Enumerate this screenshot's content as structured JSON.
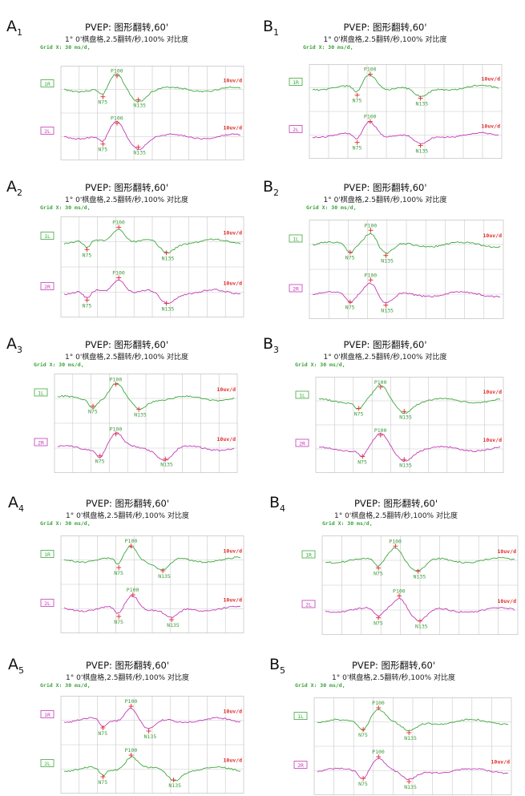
{
  "colors": {
    "green": "#3ea83e",
    "magenta": "#c23bb7",
    "red": "#e02b2b",
    "grid": "#c8c8c8"
  },
  "panels": [
    {
      "id": "A1",
      "letter": "A",
      "sub": "1",
      "title": "PVEP: 图形翻转,60'",
      "subtitle": "1° 0'棋盘格,2.5翻转/秒,100% 对比度",
      "grid_label": "Grid X: 30 ms/d,",
      "traces": [
        {
          "label": "1R",
          "color": "green",
          "scale": "10uv/d",
          "n75": "N75",
          "p100": "P100",
          "n135": "N135"
        },
        {
          "label": "2L",
          "color": "magenta",
          "scale": "10uv/d",
          "n75": "N75",
          "p100": "P100",
          "n135": "N135"
        }
      ]
    },
    {
      "id": "B1",
      "letter": "B",
      "sub": "1",
      "title": "PVEP: 图形翻转,60'",
      "subtitle": "1° 0'棋盘格,2.5翻转/秒,100% 对比度",
      "grid_label": "Grid X: 30 ms/d,",
      "traces": [
        {
          "label": "1R",
          "color": "green",
          "scale": "10uv/d",
          "n75": "N75",
          "p100": "P100",
          "n135": "N135"
        },
        {
          "label": "2L",
          "color": "magenta",
          "scale": "10uv/d",
          "n75": "N75",
          "p100": "P100",
          "n135": "N135"
        }
      ]
    },
    {
      "id": "A2",
      "letter": "A",
      "sub": "2",
      "title": "PVEP: 图形翻转,60'",
      "subtitle": "1° 0'棋盘格,2.5翻转/秒,100% 对比度",
      "grid_label": "Grid X: 30 ms/d,",
      "traces": [
        {
          "label": "1L",
          "color": "green",
          "scale": "10uv/d",
          "n75": "N75",
          "p100": "P100",
          "n135": "N135"
        },
        {
          "label": "2R",
          "color": "magenta",
          "scale": "10uv/d",
          "n75": "N75",
          "p100": "P100",
          "n135": "N135"
        }
      ]
    },
    {
      "id": "B2",
      "letter": "B",
      "sub": "2",
      "title": "PVEP: 图形翻转,60'",
      "subtitle": "1° 0'棋盘格,2.5翻转/秒,100% 对比度",
      "grid_label": "Grid X: 30 ms/d,",
      "traces": [
        {
          "label": "1L",
          "color": "green",
          "scale": "10uv/d",
          "n75": "N75",
          "p100": "P100",
          "n135": "N135"
        },
        {
          "label": "2R",
          "color": "magenta",
          "scale": "",
          "n75": "N75",
          "p100": "P100",
          "n135": "N135"
        }
      ]
    },
    {
      "id": "A3",
      "letter": "A",
      "sub": "3",
      "title": "PVEP: 图形翻转,60'",
      "subtitle": "1° 0'棋盘格,2.5翻转/秒,100% 对比度",
      "grid_label": "Grid X: 30 ms/d,",
      "traces": [
        {
          "label": "1L",
          "color": "green",
          "scale": "10uv/d",
          "n75": "N75",
          "p100": "P100",
          "n135": "N135"
        },
        {
          "label": "2R",
          "color": "magenta",
          "scale": "10uv/d",
          "n75": "N75",
          "p100": "P100",
          "n135": "N135"
        }
      ]
    },
    {
      "id": "B3",
      "letter": "B",
      "sub": "3",
      "title": "PVEP: 图形翻转,60'",
      "subtitle": "1° 0'棋盘格,2.5翻转/秒,100% 对比度",
      "grid_label": "Grid X: 30 ms/d,",
      "traces": [
        {
          "label": "1L",
          "color": "green",
          "scale": "10uv/d",
          "n75": "N75",
          "p100": "P100",
          "n135": "N135"
        },
        {
          "label": "2R",
          "color": "magenta",
          "scale": "10uv/d",
          "n75": "N75",
          "p100": "P100",
          "n135": "N135"
        }
      ]
    },
    {
      "id": "A4",
      "letter": "A",
      "sub": "4",
      "title": "PVEP: 图形翻转,60'",
      "subtitle": "1° 0'棋盘格,2.5翻转/秒,100% 对比度",
      "grid_label": "Grid X: 30 ms/d,",
      "traces": [
        {
          "label": "1R",
          "color": "green",
          "scale": "10uv/d",
          "n75": "N75",
          "p100": "P100",
          "n135": "N135"
        },
        {
          "label": "2L",
          "color": "magenta",
          "scale": "10uv/d",
          "n75": "N75",
          "p100": "P100",
          "n135": "N135"
        }
      ]
    },
    {
      "id": "B4",
      "letter": "B",
      "sub": "4",
      "title": "PVEP: 图形翻转,60'",
      "subtitle": "1° 0'棋盘格,2.5翻转/秒,100% 对比度",
      "grid_label": "Grid X: 30 ms/d,",
      "traces": [
        {
          "label": "1R",
          "color": "green",
          "scale": "10uv/d",
          "n75": "N75",
          "p100": "P100",
          "n135": "N135"
        },
        {
          "label": "2L",
          "color": "magenta",
          "scale": "10uv/d",
          "n75": "N75",
          "p100": "P100",
          "n135": "N135"
        }
      ]
    },
    {
      "id": "A5",
      "letter": "A",
      "sub": "5",
      "title": "PVEP: 图形翻转,60'",
      "subtitle": "1° 0'棋盘格,2.5翻转/秒,100% 对比度",
      "grid_label": "Grid X: 30 ms/d,",
      "traces": [
        {
          "label": "1R",
          "color": "magenta",
          "scale": "10uv/d",
          "n75": "N75",
          "p100": "P100",
          "n135": "N135"
        },
        {
          "label": "2L",
          "color": "green",
          "scale": "10uv/d",
          "n75": "N75",
          "p100": "P100",
          "n135": "N135"
        }
      ]
    },
    {
      "id": "B5",
      "letter": "B",
      "sub": "5",
      "title": "PVEP: 图形翻转,60'",
      "subtitle": "1° 0'棋盘格,2.5翻转/秒,100% 对比度",
      "grid_label": "Grid X: 30 ms/d,",
      "traces": [
        {
          "label": "1L",
          "color": "green",
          "scale": "",
          "n75": "N75",
          "p100": "P100",
          "n135": "N135"
        },
        {
          "label": "2R",
          "color": "magenta",
          "scale": "10uv/d",
          "n75": "N75",
          "p100": "P100",
          "n135": "N135"
        }
      ]
    }
  ]
}
